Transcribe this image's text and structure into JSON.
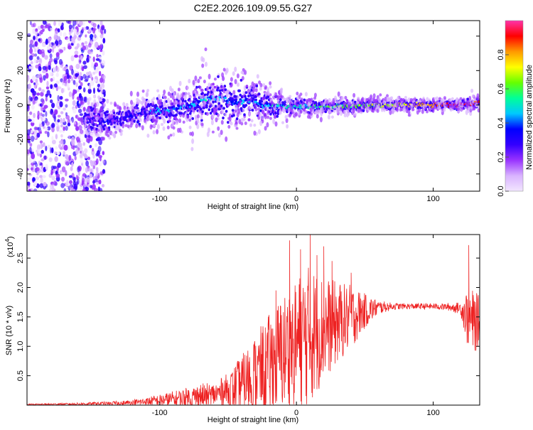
{
  "chart_data": [
    {
      "type": "heatmap",
      "title": "C2E2.2026.109.09.55.G27",
      "xlabel": "Height of straight line (km)",
      "ylabel": "Frequency (Hz)",
      "xlim": [
        -197,
        134
      ],
      "ylim": [
        -50,
        49
      ],
      "xticks": [
        -100,
        0,
        100
      ],
      "yticks": [
        40,
        20,
        0,
        -20,
        -40
      ],
      "colorbar": {
        "label": "Normalized spectral amplitude",
        "range": [
          0,
          1
        ],
        "ticks": [
          "0.0",
          "0.2",
          "0.4",
          "0.6",
          "0.8"
        ],
        "tick_values": [
          0.0,
          0.2,
          0.4,
          0.6,
          0.8
        ],
        "colors": [
          "#f2e6ff",
          "#d9b3ff",
          "#9933ff",
          "#3300ff",
          "#0000ff",
          "#00c8ff",
          "#00ff99",
          "#66ff00",
          "#ffff00",
          "#ff9900",
          "#ff0000",
          "#ff33aa"
        ]
      },
      "ridge": {
        "x": [
          -155,
          -140,
          -125,
          -110,
          -95,
          -80,
          -65,
          -55,
          -45,
          -35,
          -25,
          -15,
          0,
          20,
          40,
          60,
          80,
          100,
          120,
          134
        ],
        "freq": [
          -7,
          -9,
          -7,
          -4,
          -3,
          -1,
          4,
          4,
          1,
          3,
          0,
          0,
          -1,
          -1,
          -0.5,
          0,
          0,
          0,
          0.5,
          1.5
        ],
        "amplitude": [
          0.25,
          0.3,
          0.3,
          0.35,
          0.4,
          0.4,
          0.45,
          0.4,
          0.4,
          0.4,
          0.45,
          0.45,
          0.5,
          0.55,
          0.6,
          0.65,
          0.75,
          0.85,
          0.95,
          0.9
        ],
        "spread": [
          6,
          6,
          5,
          6,
          7,
          9,
          12,
          12,
          10,
          10,
          8,
          6,
          4,
          3,
          3,
          2.5,
          2.5,
          2,
          2,
          3
        ]
      },
      "noise_region": {
        "x_min": -197,
        "x_max": -140,
        "amplitude": 0.15
      }
    },
    {
      "type": "line",
      "title": "",
      "xlabel": "Height of straight line (km)",
      "ylabel": "SNR (10 * v/v)",
      "y_scale_note": "(x10",
      "y_scale_exp": "4",
      "y_scale_close": ")",
      "xlim": [
        -197,
        134
      ],
      "ylim": [
        0,
        2.9
      ],
      "xticks": [
        -100,
        0,
        100
      ],
      "yticks": [
        0.5,
        1.0,
        1.5,
        2.0,
        2.5
      ],
      "ytick_labels": [
        "0.5",
        "1.0",
        "1.5",
        "2.0",
        "2.5"
      ],
      "color": "#ee2222",
      "envelope": {
        "x": [
          -197,
          -160,
          -130,
          -115,
          -100,
          -90,
          -80,
          -70,
          -60,
          -50,
          -40,
          -30,
          -20,
          -10,
          0,
          5,
          10,
          20,
          30,
          40,
          50,
          60,
          70,
          80,
          90,
          100,
          110,
          120,
          125,
          130,
          134
        ],
        "base": [
          0.01,
          0.02,
          0.03,
          0.05,
          0.08,
          0.1,
          0.12,
          0.15,
          0.18,
          0.25,
          0.35,
          0.5,
          0.7,
          0.9,
          1.05,
          1.15,
          1.2,
          1.3,
          1.4,
          1.5,
          1.6,
          1.66,
          1.68,
          1.68,
          1.68,
          1.68,
          1.67,
          1.65,
          1.5,
          1.4,
          1.45
        ],
        "amp": [
          0.01,
          0.02,
          0.04,
          0.06,
          0.1,
          0.14,
          0.18,
          0.22,
          0.2,
          0.3,
          0.5,
          0.7,
          0.85,
          1.0,
          1.1,
          1.2,
          1.2,
          0.9,
          0.7,
          0.55,
          0.3,
          0.12,
          0.06,
          0.05,
          0.05,
          0.05,
          0.06,
          0.1,
          0.5,
          0.55,
          0.4
        ]
      },
      "peaks": [
        {
          "x": 3,
          "y": 2.65
        },
        {
          "x": 10,
          "y": 2.9
        },
        {
          "x": 20,
          "y": 2.7
        },
        {
          "x": -5,
          "y": 2.8
        },
        {
          "x": 15,
          "y": 2.55
        },
        {
          "x": 126,
          "y": 2.72
        },
        {
          "x": 26,
          "y": 2.45
        },
        {
          "x": -15,
          "y": 1.95
        },
        {
          "x": 40,
          "y": 2.25
        }
      ]
    }
  ]
}
